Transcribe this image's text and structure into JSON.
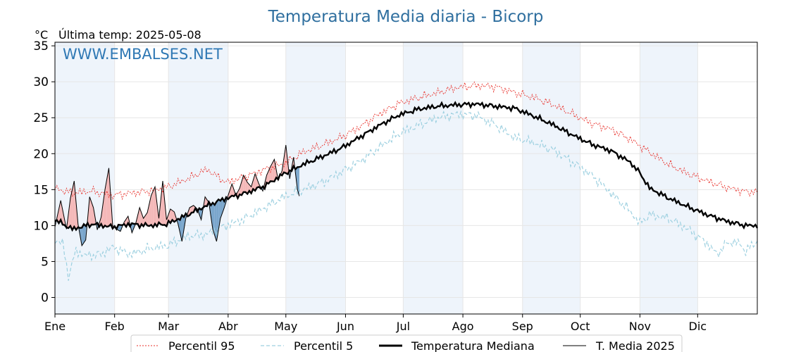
{
  "header": {
    "title": "Temperatura Media diaria - Bicorp",
    "unit": "°C",
    "last_temp": "Última temp: 2025-05-08",
    "watermark": "WWW.EMBALSES.NET"
  },
  "chart_data": {
    "type": "line",
    "title": "Temperatura Media diaria - Bicorp",
    "ylabel": "°C",
    "ylim": [
      -2.3,
      35.5
    ],
    "yticks": [
      0,
      5,
      10,
      15,
      20,
      25,
      30,
      35
    ],
    "xlim": [
      1,
      366
    ],
    "months": [
      {
        "label": "Ene",
        "day": 1
      },
      {
        "label": "Feb",
        "day": 32
      },
      {
        "label": "Mar",
        "day": 60
      },
      {
        "label": "Abr",
        "day": 91
      },
      {
        "label": "May",
        "day": 121
      },
      {
        "label": "Jun",
        "day": 152
      },
      {
        "label": "Jul",
        "day": 182
      },
      {
        "label": "Ago",
        "day": 213
      },
      {
        "label": "Sep",
        "day": 244
      },
      {
        "label": "Oct",
        "day": 274
      },
      {
        "label": "Nov",
        "day": 305
      },
      {
        "label": "Dic",
        "day": 335
      }
    ],
    "grid": true,
    "legend_position": "bottom-center",
    "colors": {
      "p95": "#e8302a",
      "p5": "#9dd0e0",
      "median": "#000000",
      "current": "#000000",
      "above_fill": "#f4b8b8",
      "below_fill": "#7aa6cc",
      "band_fill": "#eef4fb"
    },
    "series": [
      {
        "name": "Percentil 95",
        "key": "p95",
        "x": [
          1,
          10,
          20,
          31,
          40,
          50,
          59,
          70,
          80,
          90,
          100,
          110,
          120,
          130,
          140,
          150,
          160,
          170,
          180,
          190,
          200,
          210,
          220,
          230,
          240,
          250,
          260,
          270,
          280,
          290,
          300,
          310,
          320,
          330,
          340,
          350,
          360,
          366
        ],
        "y": [
          15.2,
          14.5,
          14.8,
          14.2,
          14.5,
          14.8,
          15.3,
          16.5,
          17.8,
          16.0,
          16.8,
          17.8,
          18.6,
          20.2,
          21.2,
          22.3,
          23.8,
          25.6,
          27.0,
          27.8,
          28.5,
          29.2,
          29.5,
          29.3,
          28.5,
          27.8,
          26.8,
          25.5,
          24.2,
          23.4,
          22.0,
          20.2,
          18.5,
          17.2,
          16.2,
          15.3,
          14.7,
          14.7
        ]
      },
      {
        "name": "Percentil 5",
        "key": "p5",
        "x": [
          1,
          5,
          8,
          12,
          17,
          25,
          31,
          40,
          50,
          59,
          70,
          80,
          90,
          100,
          110,
          120,
          130,
          140,
          150,
          160,
          170,
          180,
          190,
          200,
          210,
          220,
          230,
          240,
          250,
          260,
          270,
          280,
          290,
          300,
          305,
          310,
          320,
          330,
          335,
          340,
          345,
          350,
          355,
          360,
          366
        ],
        "y": [
          8.0,
          7.5,
          3.0,
          6.5,
          5.8,
          6.0,
          7.0,
          6.0,
          6.8,
          7.2,
          8.5,
          8.8,
          10.0,
          11.0,
          12.5,
          14.0,
          15.0,
          16.0,
          17.5,
          19.0,
          21.0,
          22.8,
          24.0,
          25.0,
          25.5,
          25.3,
          24.0,
          22.2,
          21.5,
          20.5,
          18.8,
          17.0,
          14.5,
          12.0,
          10.3,
          11.5,
          11.0,
          9.5,
          8.5,
          7.5,
          6.0,
          7.5,
          7.8,
          6.5,
          7.8
        ]
      },
      {
        "name": "Temperatura Mediana",
        "key": "median",
        "x": [
          1,
          10,
          20,
          31,
          40,
          50,
          59,
          70,
          80,
          90,
          100,
          110,
          120,
          130,
          140,
          150,
          160,
          170,
          180,
          190,
          200,
          210,
          220,
          230,
          240,
          250,
          260,
          270,
          280,
          290,
          300,
          305,
          310,
          320,
          330,
          340,
          350,
          360,
          366
        ],
        "y": [
          10.8,
          9.5,
          10.2,
          9.8,
          10.2,
          10.0,
          10.2,
          11.5,
          12.8,
          13.8,
          14.5,
          15.5,
          17.2,
          18.5,
          19.6,
          20.8,
          22.4,
          24.0,
          25.4,
          26.2,
          26.6,
          26.8,
          26.9,
          26.6,
          26.3,
          25.2,
          24.0,
          22.6,
          21.3,
          20.4,
          18.8,
          17.3,
          15.2,
          13.8,
          12.6,
          11.5,
          10.6,
          10.0,
          10.0
        ]
      },
      {
        "name": "T. Media 2025",
        "key": "current",
        "x": [
          1,
          4,
          7,
          9,
          11,
          13,
          15,
          17,
          19,
          21,
          23,
          25,
          27,
          29,
          31,
          33,
          35,
          37,
          39,
          41,
          43,
          45,
          47,
          49,
          51,
          53,
          55,
          57,
          59,
          61,
          63,
          65,
          67,
          69,
          71,
          73,
          75,
          77,
          79,
          81,
          83,
          85,
          87,
          89,
          91,
          93,
          95,
          97,
          99,
          101,
          103,
          105,
          107,
          109,
          111,
          113,
          115,
          117,
          119,
          121,
          123,
          125,
          127,
          128
        ],
        "y": [
          9.8,
          13.5,
          9.5,
          13.8,
          16.2,
          10.2,
          7.2,
          8.0,
          14.0,
          12.5,
          9.4,
          11.2,
          15.0,
          18.0,
          10.0,
          9.5,
          9.2,
          10.5,
          11.3,
          9.0,
          10.3,
          12.5,
          11.0,
          11.8,
          14.2,
          15.4,
          11.0,
          16.2,
          10.8,
          12.3,
          11.9,
          10.2,
          7.8,
          11.0,
          12.5,
          12.8,
          12.3,
          10.8,
          14.0,
          13.2,
          9.5,
          7.8,
          11.0,
          12.5,
          14.2,
          15.8,
          14.2,
          15.2,
          17.0,
          16.0,
          15.4,
          17.2,
          15.8,
          14.8,
          17.0,
          18.2,
          19.2,
          16.3,
          17.6,
          21.2,
          16.5,
          19.5,
          15.0,
          14.1
        ]
      }
    ]
  },
  "legend": {
    "p95": "Percentil 95",
    "p5": "Percentil 5",
    "median": "Temperatura Mediana",
    "current": "T. Media 2025"
  }
}
